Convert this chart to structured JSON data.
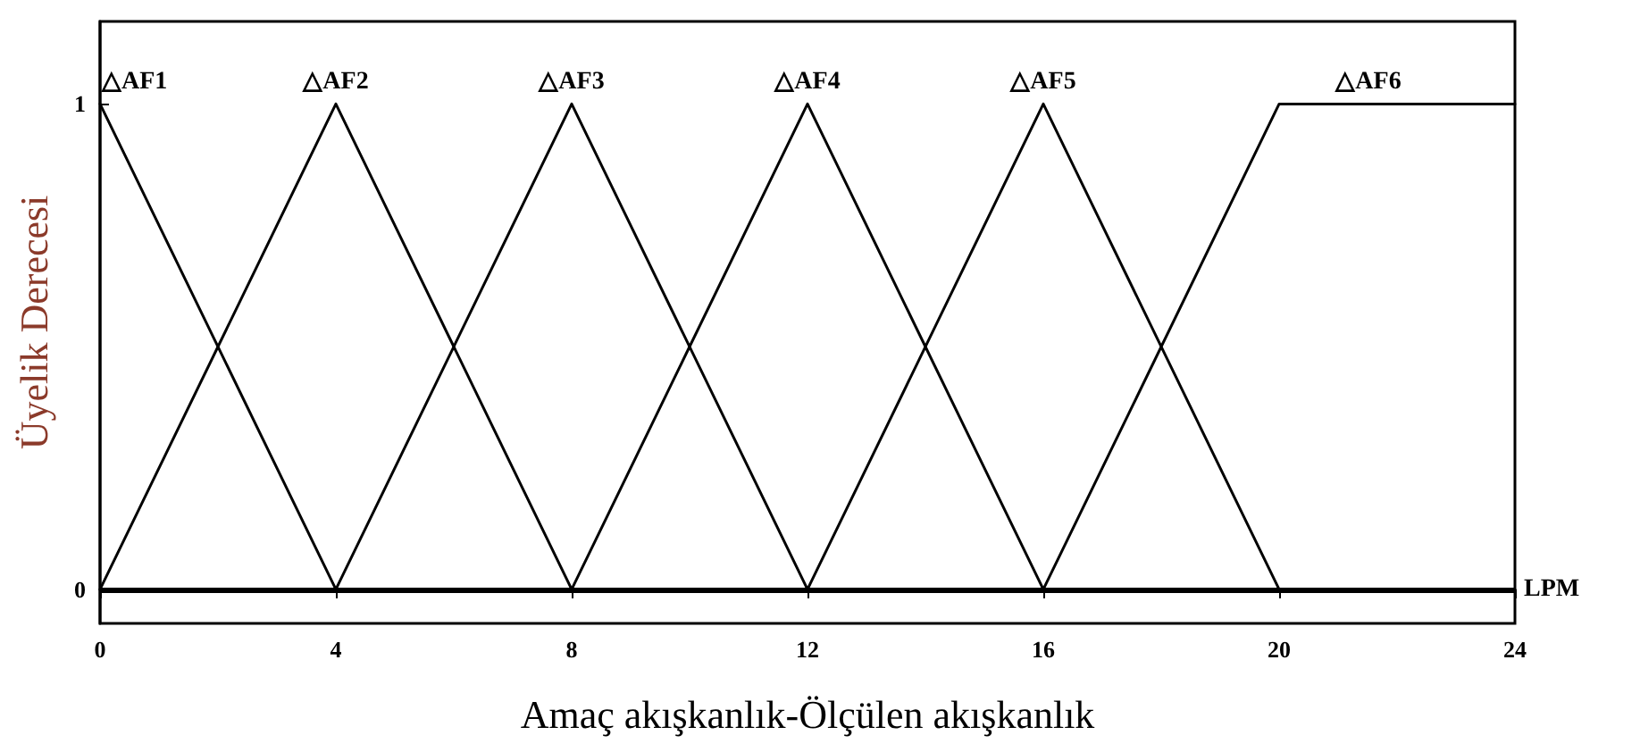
{
  "chart_data": {
    "type": "line",
    "xlabel": "Amaç akışkanlık-Ölçülen akışkanlık",
    "ylabel": "Üyelik Derecesi",
    "xlim": [
      0,
      24
    ],
    "xticks": [
      0,
      4,
      8,
      12,
      16,
      20,
      24
    ],
    "ylim": [
      -0.07,
      1.17
    ],
    "yticks": [
      0,
      1
    ],
    "grid": false,
    "legend": false,
    "marker": "none",
    "line_style": "solid",
    "series": [
      {
        "name": "△AF1",
        "color": "#000000",
        "x": [
          0,
          4
        ],
        "values": [
          1,
          0
        ]
      },
      {
        "name": "△AF2",
        "color": "#000000",
        "x": [
          0,
          4,
          8
        ],
        "values": [
          0,
          1,
          0
        ]
      },
      {
        "name": "△AF3",
        "color": "#000000",
        "x": [
          4,
          8,
          12
        ],
        "values": [
          0,
          1,
          0
        ]
      },
      {
        "name": "△AF4",
        "color": "#000000",
        "x": [
          8,
          12,
          16
        ],
        "values": [
          0,
          1,
          0
        ]
      },
      {
        "name": "△AF5",
        "color": "#000000",
        "x": [
          12,
          16,
          20
        ],
        "values": [
          0,
          1,
          0
        ]
      },
      {
        "name": "△AF6",
        "color": "#000000",
        "x": [
          16,
          20,
          24
        ],
        "values": [
          0,
          1,
          1
        ]
      }
    ],
    "ref_lines": [
      {
        "axis": "y",
        "value": 0,
        "label": "LPM",
        "color": "#000000"
      }
    ]
  }
}
